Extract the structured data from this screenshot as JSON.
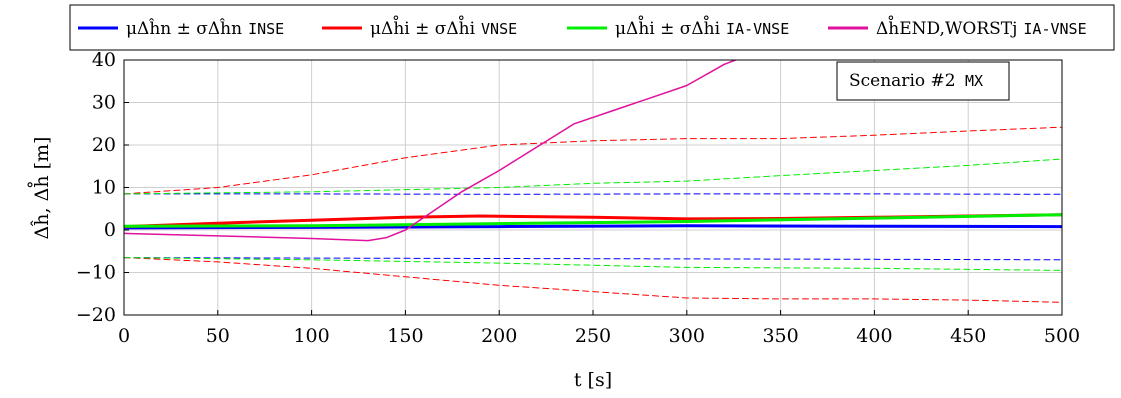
{
  "chart_data": {
    "type": "line",
    "xlabel": "t [s]",
    "ylabel": "Δĥ, Δh̊ [m]",
    "xlim": [
      0,
      500
    ],
    "ylim": [
      -20,
      40
    ],
    "x_ticks": [
      0,
      50,
      100,
      150,
      200,
      250,
      300,
      350,
      400,
      450,
      500
    ],
    "y_ticks": [
      -20,
      -10,
      0,
      10,
      20,
      30,
      40
    ],
    "grid": true,
    "legend_placement": "top",
    "annotation": {
      "text": "Scenario #2",
      "tag": "MX"
    },
    "legend": [
      {
        "math": "μΔĥn ± σΔĥn",
        "tag": "INSE",
        "color": "#0000ff"
      },
      {
        "math": "μΔh̊i ± σΔh̊i",
        "tag": "VNSE",
        "color": "#ff0000"
      },
      {
        "math": "μΔh̊i ± σΔh̊i",
        "tag": "IA-VNSE",
        "color": "#00ee00"
      },
      {
        "math": "Δh̊END,WORSTj",
        "tag": "IA-VNSE",
        "color": "#e0119d"
      }
    ],
    "series": [
      {
        "name": "μ INSE",
        "color": "#0000ff",
        "style": "solid",
        "width": 3,
        "x": [
          0,
          100,
          200,
          300,
          400,
          500
        ],
        "y": [
          0.5,
          0.6,
          0.8,
          1.0,
          0.9,
          0.8
        ]
      },
      {
        "name": "μ+σ INSE",
        "color": "#0000ff",
        "style": "dashed",
        "width": 1,
        "x": [
          0,
          100,
          200,
          300,
          400,
          500
        ],
        "y": [
          8.5,
          8.5,
          8.4,
          8.5,
          8.5,
          8.4
        ]
      },
      {
        "name": "μ-σ INSE",
        "color": "#0000ff",
        "style": "dashed",
        "width": 1,
        "x": [
          0,
          100,
          200,
          300,
          400,
          500
        ],
        "y": [
          -6.5,
          -6.6,
          -6.7,
          -6.8,
          -6.9,
          -7.0
        ]
      },
      {
        "name": "μ VNSE",
        "color": "#ff0000",
        "style": "solid",
        "width": 3,
        "x": [
          0,
          50,
          100,
          150,
          190,
          250,
          300,
          350,
          400,
          450,
          500
        ],
        "y": [
          0.8,
          1.6,
          2.3,
          3.0,
          3.3,
          3.0,
          2.6,
          2.7,
          3.0,
          3.3,
          3.6
        ]
      },
      {
        "name": "μ+σ VNSE",
        "color": "#ff0000",
        "style": "dashed",
        "width": 1,
        "x": [
          0,
          50,
          100,
          150,
          200,
          250,
          300,
          350,
          400,
          450,
          500
        ],
        "y": [
          8.5,
          10.0,
          13.0,
          17.0,
          20.0,
          21.0,
          21.5,
          21.5,
          22.3,
          23.3,
          24.2
        ]
      },
      {
        "name": "μ-σ VNSE",
        "color": "#ff0000",
        "style": "dashed",
        "width": 1,
        "x": [
          0,
          50,
          100,
          150,
          200,
          250,
          300,
          350,
          400,
          450,
          500
        ],
        "y": [
          -6.5,
          -7.5,
          -9.0,
          -11.0,
          -13.0,
          -14.5,
          -16.0,
          -16.2,
          -16.2,
          -16.5,
          -17.0
        ]
      },
      {
        "name": "μ IA-VNSE",
        "color": "#00ee00",
        "style": "solid",
        "width": 3,
        "x": [
          0,
          100,
          200,
          300,
          400,
          500
        ],
        "y": [
          0.9,
          1.0,
          1.5,
          2.0,
          2.8,
          3.6
        ]
      },
      {
        "name": "μ+σ IA-VNSE",
        "color": "#00ee00",
        "style": "dashed",
        "width": 1,
        "x": [
          0,
          100,
          200,
          250,
          300,
          350,
          400,
          450,
          500
        ],
        "y": [
          8.5,
          9.0,
          10.0,
          11.0,
          11.5,
          12.8,
          14.0,
          15.2,
          16.7
        ]
      },
      {
        "name": "μ-σ IA-VNSE",
        "color": "#00ee00",
        "style": "dashed",
        "width": 1,
        "x": [
          0,
          100,
          200,
          300,
          400,
          500
        ],
        "y": [
          -6.5,
          -7.0,
          -7.8,
          -8.8,
          -9.0,
          -9.5
        ]
      },
      {
        "name": "Δh̊ END,WORST IA-VNSE",
        "color": "#e0119d",
        "style": "solid",
        "width": 1.5,
        "x": [
          0,
          50,
          100,
          130,
          140,
          150,
          160,
          180,
          200,
          220,
          240,
          260,
          280,
          300,
          320,
          326
        ],
        "y": [
          -0.8,
          -1.4,
          -2.0,
          -2.5,
          -1.8,
          0.0,
          3.0,
          9.0,
          14.0,
          19.5,
          25.0,
          28.0,
          31.0,
          34.0,
          39.0,
          40.0
        ]
      }
    ]
  }
}
